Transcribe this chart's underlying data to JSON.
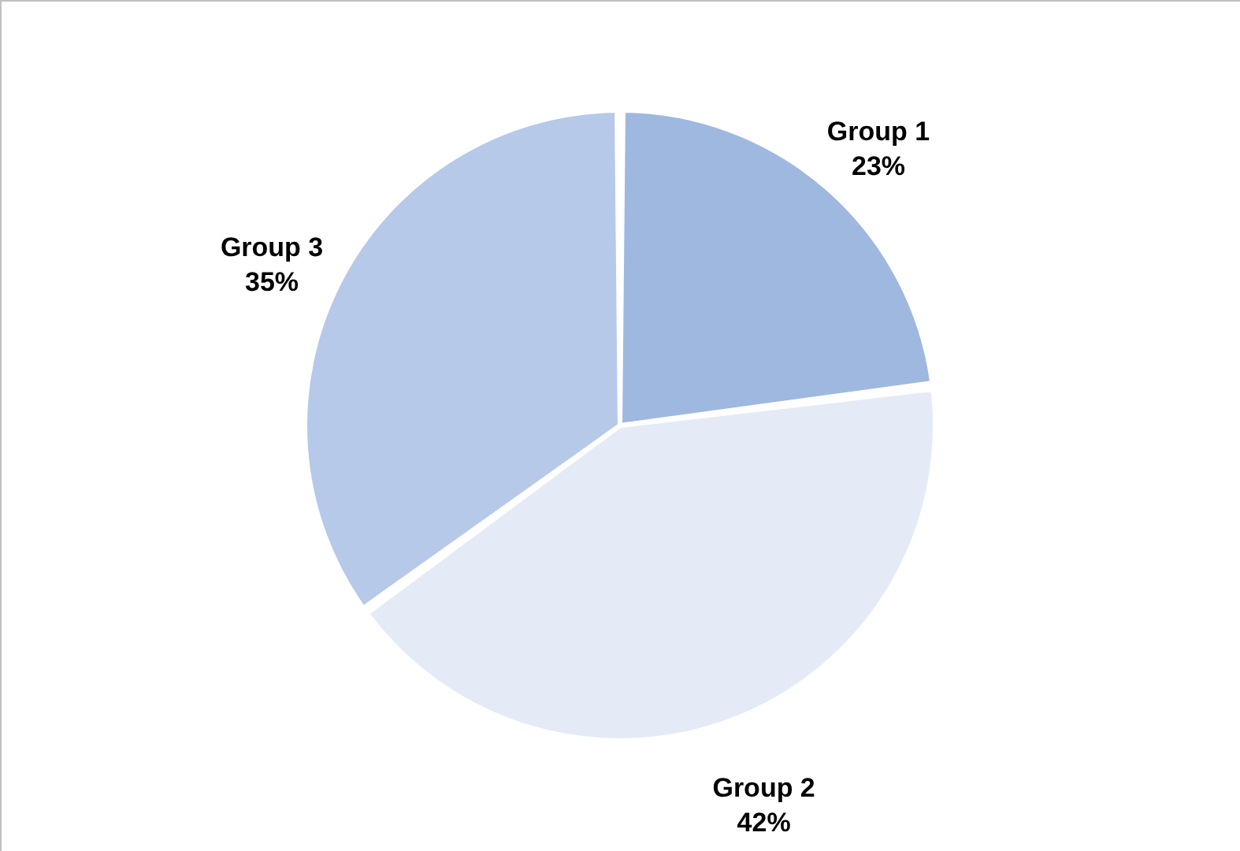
{
  "chart_data": {
    "type": "pie",
    "categories": [
      "Group 1",
      "Group 2",
      "Group 3"
    ],
    "values": [
      23,
      42,
      35
    ],
    "value_labels": [
      "23%",
      "42%",
      "35%"
    ],
    "colors": [
      "#9fb8e0",
      "#e4ebf7",
      "#b7c9e9"
    ],
    "legend": false
  }
}
